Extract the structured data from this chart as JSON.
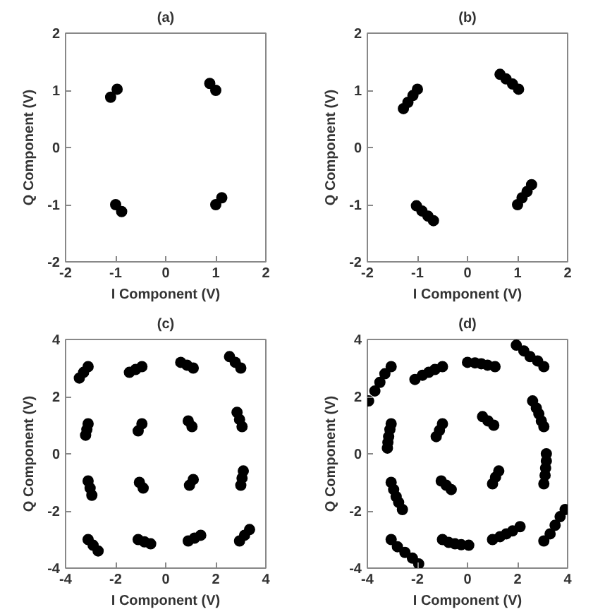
{
  "chart_data": [
    {
      "type": "scatter",
      "title": "(a)",
      "xlabel": "I Component (V)",
      "ylabel": "Q Component (V)",
      "xlim": [
        -2,
        2
      ],
      "ylim": [
        -2,
        2
      ],
      "xticks": [
        -2,
        -1,
        0,
        1,
        2
      ],
      "yticks": [
        -2,
        -1,
        0,
        1,
        2
      ],
      "marker": "circle",
      "color": "#000000",
      "x": [
        -1.1,
        -0.97,
        0.88,
        1.0,
        -1.0,
        -0.88,
        1.0,
        1.12
      ],
      "values": [
        0.88,
        1.02,
        1.12,
        1.0,
        -1.0,
        -1.12,
        -1.0,
        -0.88
      ]
    },
    {
      "type": "scatter",
      "title": "(b)",
      "xlabel": "I Component (V)",
      "ylabel": "Q Component (V)",
      "xlim": [
        -2,
        2
      ],
      "ylim": [
        -2,
        2
      ],
      "xticks": [
        -2,
        -1,
        0,
        1,
        2
      ],
      "yticks": [
        -2,
        -1,
        0,
        1,
        2
      ],
      "marker": "circle",
      "color": "#000000",
      "x": [
        -1.28,
        -1.19,
        -1.09,
        -1.0,
        0.65,
        0.77,
        0.9,
        1.02,
        -1.02,
        -0.91,
        -0.79,
        -0.68,
        1.0,
        1.09,
        1.19,
        1.28
      ],
      "values": [
        0.68,
        0.79,
        0.91,
        1.02,
        1.28,
        1.2,
        1.11,
        1.02,
        -1.02,
        -1.11,
        -1.2,
        -1.28,
        -1.0,
        -0.88,
        -0.77,
        -0.65
      ]
    },
    {
      "type": "scatter",
      "title": "(c)",
      "xlabel": "I Component (V)",
      "ylabel": "Q Component (V)",
      "xlim": [
        -4,
        4
      ],
      "ylim": [
        -4,
        4
      ],
      "xticks": [
        -4,
        -2,
        0,
        2,
        4
      ],
      "yticks": [
        -4,
        -2,
        0,
        2,
        4
      ],
      "marker": "circle",
      "color": "#000000",
      "x": [
        -3.45,
        -3.28,
        -3.1,
        -1.45,
        -1.2,
        -0.95,
        0.6,
        0.85,
        1.1,
        2.55,
        2.78,
        3.0,
        -3.2,
        -3.15,
        -3.1,
        -1.1,
        -0.95,
        0.9,
        1.05,
        2.85,
        2.95,
        3.05,
        -3.1,
        -3.02,
        -2.95,
        -1.05,
        -0.9,
        0.95,
        1.1,
        3.0,
        3.05,
        3.1,
        -3.1,
        -2.9,
        -2.7,
        -1.1,
        -0.85,
        -0.6,
        0.9,
        1.15,
        1.4,
        2.95,
        3.15,
        3.35
      ],
      "values": [
        2.65,
        2.85,
        3.05,
        2.85,
        2.95,
        3.05,
        3.2,
        3.1,
        3.0,
        3.4,
        3.2,
        3.0,
        0.65,
        0.85,
        1.05,
        0.8,
        1.05,
        1.15,
        0.95,
        1.45,
        1.2,
        0.95,
        -0.95,
        -1.2,
        -1.45,
        -1.0,
        -1.2,
        -1.1,
        -0.9,
        -1.1,
        -0.85,
        -0.6,
        -3.0,
        -3.2,
        -3.4,
        -3.0,
        -3.08,
        -3.15,
        -3.05,
        -2.95,
        -2.85,
        -3.05,
        -2.85,
        -2.65
      ]
    },
    {
      "type": "scatter",
      "title": "(d)",
      "xlabel": "I Component (V)",
      "ylabel": "Q Component (V)",
      "xlim": [
        -4,
        4
      ],
      "ylim": [
        -4,
        4
      ],
      "xticks": [
        -4,
        -2,
        0,
        2,
        4
      ],
      "yticks": [
        -4,
        -2,
        0,
        2,
        4
      ],
      "marker": "circle",
      "color": "#000000",
      "x": [
        -3.95,
        -3.7,
        -3.5,
        -3.3,
        -3.05,
        1.95,
        2.25,
        2.5,
        2.8,
        3.05,
        3.05,
        3.3,
        3.5,
        3.7,
        3.9,
        -3.05,
        -2.8,
        -2.5,
        -2.2,
        -1.95,
        -2.1,
        -1.8,
        -1.55,
        -1.3,
        -1.0,
        0.0,
        0.3,
        0.55,
        0.8,
        1.1,
        2.6,
        2.75,
        2.85,
        2.95,
        3.05,
        3.15,
        3.15,
        3.12,
        3.1,
        3.05,
        1.0,
        1.3,
        1.55,
        1.8,
        2.1,
        -1.0,
        -0.75,
        -0.5,
        -0.25,
        0.05,
        -3.05,
        -2.95,
        -2.85,
        -2.75,
        -2.6,
        -3.2,
        -3.18,
        -3.15,
        -3.1,
        -3.05,
        -1.25,
        -1.12,
        -1.0,
        0.6,
        0.82,
        1.05,
        -1.05,
        -0.85,
        -0.65,
        1.0,
        1.12,
        1.25
      ],
      "values": [
        1.85,
        2.2,
        2.5,
        2.8,
        3.05,
        3.8,
        3.6,
        3.4,
        3.25,
        3.05,
        -3.05,
        -2.8,
        -2.5,
        -2.2,
        -1.95,
        -3.0,
        -3.25,
        -3.45,
        -3.65,
        -3.85,
        2.6,
        2.75,
        2.85,
        2.95,
        3.05,
        3.2,
        3.18,
        3.15,
        3.1,
        3.05,
        1.85,
        1.6,
        1.4,
        1.15,
        0.95,
        0.0,
        -0.25,
        -0.5,
        -0.75,
        -1.05,
        -3.0,
        -2.9,
        -2.8,
        -2.7,
        -2.55,
        -3.0,
        -3.1,
        -3.15,
        -3.18,
        -3.2,
        -1.0,
        -1.25,
        -1.5,
        -1.7,
        -1.95,
        0.2,
        0.4,
        0.6,
        0.85,
        1.05,
        0.6,
        0.82,
        1.05,
        1.3,
        1.15,
        1.0,
        -0.95,
        -1.1,
        -1.25,
        -1.05,
        -0.82,
        -0.6
      ]
    }
  ]
}
